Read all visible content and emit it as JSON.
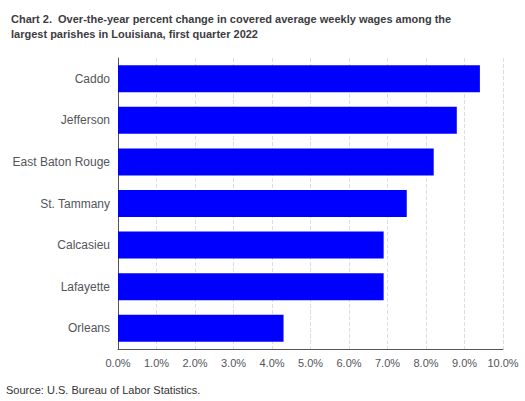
{
  "chart_data": {
    "type": "bar",
    "orientation": "horizontal",
    "title": "Chart 2.  Over-the-year percent change in covered average weekly wages among the\nlargest parishes in Louisiana, first quarter 2022",
    "annotations": [
      "Source: U.S. Bureau of Labor Statistics."
    ],
    "categories": [
      "Orleans",
      "Lafayette",
      "Calcasieu",
      "St. Tammany",
      "East Baton Rouge",
      "Jefferson",
      "Caddo"
    ],
    "values": [
      0.043,
      0.069,
      0.069,
      0.075,
      0.082,
      0.088,
      0.094
    ],
    "color": "#0000ff",
    "xlim": [
      0,
      0.1
    ],
    "xticks": [
      {
        "value": 0.0,
        "label": "0.0%"
      },
      {
        "value": 0.01,
        "label": "1.0%"
      },
      {
        "value": 0.02,
        "label": "2.0%"
      },
      {
        "value": 0.03,
        "label": "3.0%"
      },
      {
        "value": 0.04,
        "label": "4.0%"
      },
      {
        "value": 0.05,
        "label": "5.0%"
      },
      {
        "value": 0.06,
        "label": "6.0%"
      },
      {
        "value": 0.07,
        "label": "7.0%"
      },
      {
        "value": 0.08,
        "label": "8.0%"
      },
      {
        "value": 0.09,
        "label": "9.0%"
      },
      {
        "value": 0.1,
        "label": "10.0%"
      }
    ],
    "grid": true
  }
}
